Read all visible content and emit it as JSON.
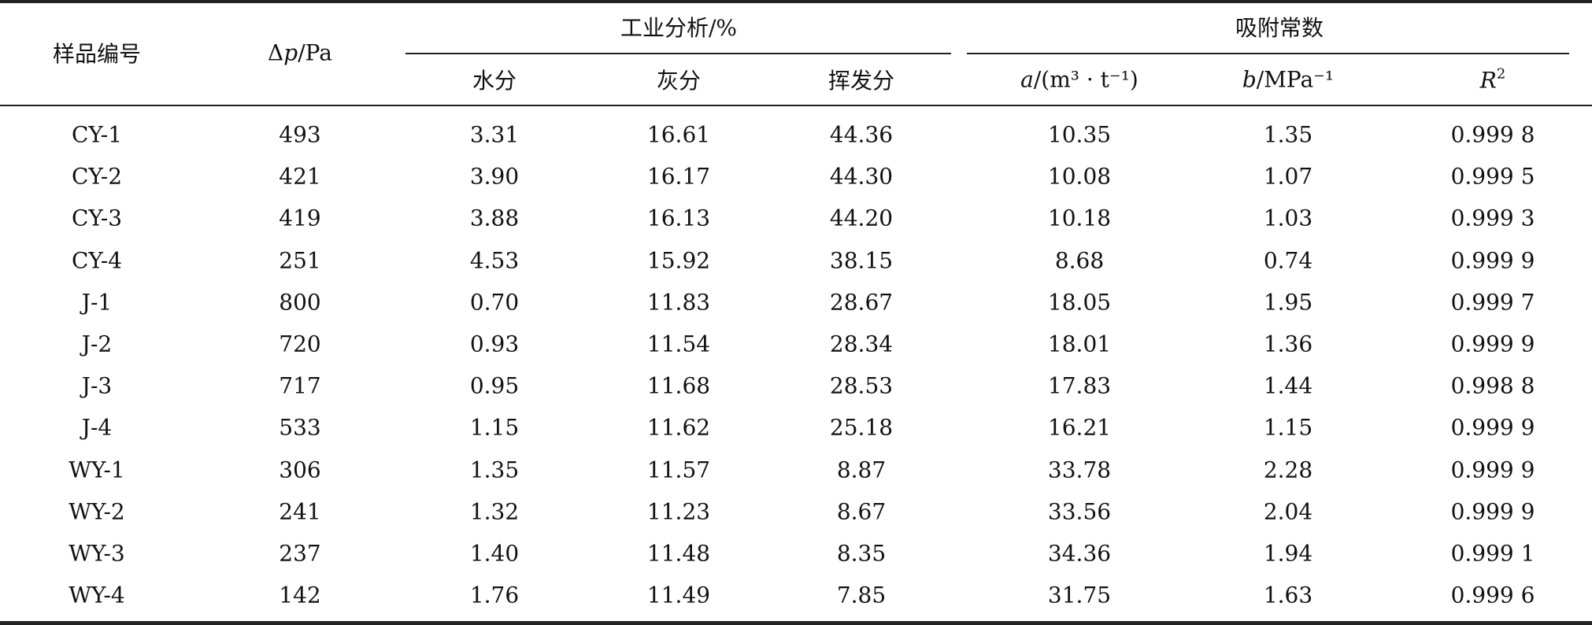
{
  "table": {
    "header": {
      "sample": "样品编号",
      "dp": [
        "Δ",
        "p",
        "/Pa"
      ],
      "group1": "工业分析/%",
      "group2": "吸附常数",
      "sub": [
        "水分",
        "灰分",
        "挥发分"
      ],
      "a": [
        "a",
        "/(m³ · t⁻¹)"
      ],
      "b": [
        "b",
        "/MPa⁻¹"
      ],
      "r": [
        "R",
        "2"
      ]
    },
    "rows": [
      [
        "CY-1",
        "493",
        "3.31",
        "16.61",
        "44.36",
        "10.35",
        "1.35",
        "0.999 8"
      ],
      [
        "CY-2",
        "421",
        "3.90",
        "16.17",
        "44.30",
        "10.08",
        "1.07",
        "0.999 5"
      ],
      [
        "CY-3",
        "419",
        "3.88",
        "16.13",
        "44.20",
        "10.18",
        "1.03",
        "0.999 3"
      ],
      [
        "CY-4",
        "251",
        "4.53",
        "15.92",
        "38.15",
        "8.68",
        "0.74",
        "0.999 9"
      ],
      [
        "J-1",
        "800",
        "0.70",
        "11.83",
        "28.67",
        "18.05",
        "1.95",
        "0.999 7"
      ],
      [
        "J-2",
        "720",
        "0.93",
        "11.54",
        "28.34",
        "18.01",
        "1.36",
        "0.999 9"
      ],
      [
        "J-3",
        "717",
        "0.95",
        "11.68",
        "28.53",
        "17.83",
        "1.44",
        "0.998 8"
      ],
      [
        "J-4",
        "533",
        "1.15",
        "11.62",
        "25.18",
        "16.21",
        "1.15",
        "0.999 9"
      ],
      [
        "WY-1",
        "306",
        "1.35",
        "11.57",
        "8.87",
        "33.78",
        "2.28",
        "0.999 9"
      ],
      [
        "WY-2",
        "241",
        "1.32",
        "11.23",
        "8.67",
        "33.56",
        "2.04",
        "0.999 9"
      ],
      [
        "WY-3",
        "237",
        "1.40",
        "11.48",
        "8.35",
        "34.36",
        "1.94",
        "0.999 1"
      ],
      [
        "WY-4",
        "142",
        "1.76",
        "11.49",
        "7.85",
        "31.75",
        "1.63",
        "0.999 6"
      ]
    ]
  }
}
